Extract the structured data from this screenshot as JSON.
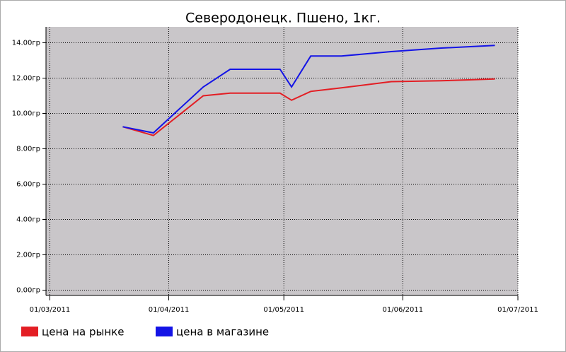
{
  "chart_data": {
    "type": "line",
    "title": "Северодонецк. Пшено, 1кг.",
    "x": [
      "2011-03-20",
      "2011-03-28",
      "2011-04-10",
      "2011-04-17",
      "2011-04-30",
      "2011-05-03",
      "2011-05-08",
      "2011-05-16",
      "2011-05-29",
      "2011-06-11",
      "2011-06-25"
    ],
    "series": [
      {
        "name": "цена на рынке",
        "color": "#e31e24",
        "values": [
          9.25,
          8.75,
          11.0,
          11.15,
          11.15,
          10.75,
          11.25,
          11.45,
          11.8,
          11.85,
          11.95
        ]
      },
      {
        "name": "цена в магазине",
        "color": "#1414e6",
        "values": [
          9.25,
          8.9,
          11.5,
          12.5,
          12.5,
          11.5,
          13.25,
          13.25,
          13.5,
          13.7,
          13.85
        ]
      }
    ],
    "xlim": [
      "2011-02-28",
      "2011-07-01"
    ],
    "xticks": [
      {
        "value": "2011-03-01",
        "label": "01/03/2011"
      },
      {
        "value": "2011-04-01",
        "label": "01/04/2011"
      },
      {
        "value": "2011-05-01",
        "label": "01/05/2011"
      },
      {
        "value": "2011-06-01",
        "label": "01/06/2011"
      },
      {
        "value": "2011-07-01",
        "label": "01/07/2011"
      }
    ],
    "ylim": [
      -0.3,
      14.9
    ],
    "yticks": [
      {
        "value": 0,
        "label": "0.00гр"
      },
      {
        "value": 2,
        "label": "2.00гр"
      },
      {
        "value": 4,
        "label": "4.00гр"
      },
      {
        "value": 6,
        "label": "6.00гр"
      },
      {
        "value": 8,
        "label": "8.00гр"
      },
      {
        "value": 10,
        "label": "10.00гр"
      },
      {
        "value": 12,
        "label": "12.00гр"
      },
      {
        "value": 14,
        "label": "14.00гр"
      }
    ],
    "grid": true
  }
}
